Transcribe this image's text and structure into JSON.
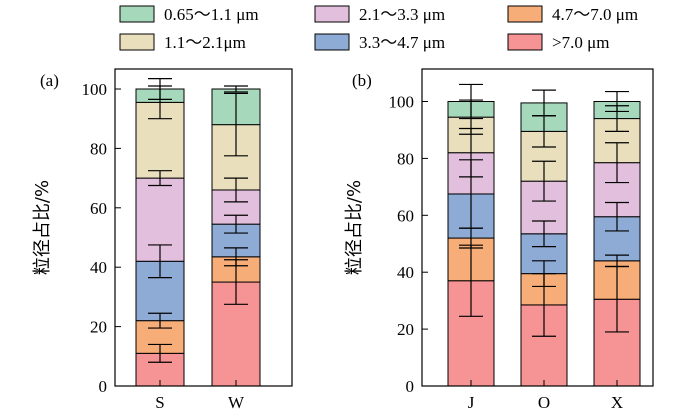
{
  "legend": {
    "items": [
      {
        "label": "0.65～1.1 μm",
        "color": "#a6d9bb"
      },
      {
        "label": "2.1～3.3 μm",
        "color": "#e2bfdd"
      },
      {
        "label": "4.7～7.0 μm",
        "color": "#f6ad77"
      },
      {
        "label": "1.1～2.1μm",
        "color": "#eadfbd"
      },
      {
        "label": "3.3～4.7 μm",
        "color": "#8eabd5"
      },
      {
        "label": ">7.0 μm",
        "color": "#f59395"
      }
    ]
  },
  "chart_data": [
    {
      "type": "bar",
      "stacked": true,
      "panel_label": "(a)",
      "ylabel": "粒径占比/%",
      "xlabel": "",
      "ylim": [
        0,
        105
      ],
      "yticks": [
        0,
        20,
        40,
        60,
        80,
        100
      ],
      "categories": [
        "S",
        "W"
      ],
      "series": [
        {
          "name": ">7.0 μm",
          "values": [
            11,
            35
          ],
          "errors": [
            3,
            7.5
          ]
        },
        {
          "name": "4.7～7.0 μm",
          "values": [
            11,
            8.5
          ],
          "errors": [
            2.5,
            3
          ]
        },
        {
          "name": "3.3～4.7 μm",
          "values": [
            20,
            11
          ],
          "errors": [
            5.5,
            3
          ]
        },
        {
          "name": "2.1～3.3 μm",
          "values": [
            28,
            11.5
          ],
          "errors": [
            2.5,
            4
          ]
        },
        {
          "name": "1.1～2.1μm",
          "values": [
            25.5,
            22
          ],
          "errors": [
            5.5,
            10.5
          ]
        },
        {
          "name": "0.65～1.1 μm",
          "values": [
            4.5,
            12
          ],
          "errors": [
            3.5,
            1
          ]
        }
      ]
    },
    {
      "type": "bar",
      "stacked": true,
      "panel_label": "(b)",
      "ylabel": "粒径占比/%",
      "xlabel": "",
      "ylim": [
        0,
        105
      ],
      "yticks": [
        0,
        20,
        40,
        60,
        80,
        100
      ],
      "categories": [
        "J",
        "O",
        "X"
      ],
      "series": [
        {
          "name": ">7.0 μm",
          "values": [
            37,
            28.5,
            30.5
          ],
          "errors": [
            12.5,
            11,
            11.5
          ]
        },
        {
          "name": "4.7～7.0 μm",
          "values": [
            15,
            11,
            13.5
          ],
          "errors": [
            3.5,
            4.5,
            2
          ]
        },
        {
          "name": "3.3～4.7 μm",
          "values": [
            15.5,
            14,
            15.5
          ],
          "errors": [
            12,
            4.5,
            5
          ]
        },
        {
          "name": "2.1～3.3 μm",
          "values": [
            14.5,
            18.5,
            19
          ],
          "errors": [
            8.5,
            7,
            7
          ]
        },
        {
          "name": "1.1～2.1μm",
          "values": [
            12.5,
            17.5,
            15.5
          ],
          "errors": [
            6,
            5.5,
            4.5
          ]
        },
        {
          "name": "0.65～1.1 μm",
          "values": [
            5.5,
            10,
            6
          ],
          "errors": [
            6,
            4.5,
            3.5
          ]
        }
      ]
    }
  ]
}
